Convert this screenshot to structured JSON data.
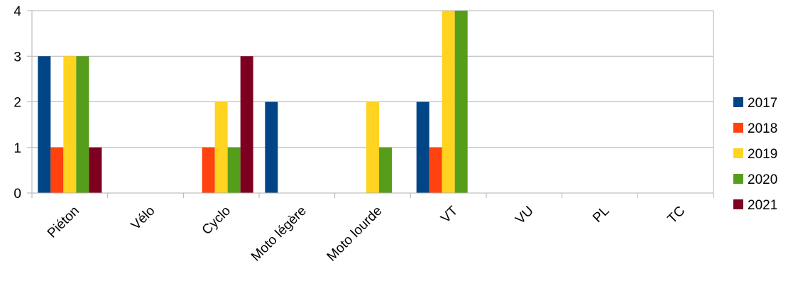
{
  "chart_data": {
    "type": "bar",
    "title": "",
    "xlabel": "",
    "ylabel": "",
    "ylim": [
      0,
      4
    ],
    "yticks": [
      0,
      1,
      2,
      3,
      4
    ],
    "grid": true,
    "legend_position": "right",
    "categories": [
      "Piéton",
      "Vélo",
      "Cyclo",
      "Moto légère",
      "Moto lourde",
      "VT",
      "VU",
      "PL",
      "TC"
    ],
    "series": [
      {
        "name": "2017",
        "color": "#004586",
        "values": [
          3,
          0,
          0,
          2,
          0,
          2,
          0,
          0,
          0
        ]
      },
      {
        "name": "2018",
        "color": "#ff420e",
        "values": [
          1,
          0,
          1,
          0,
          0,
          1,
          0,
          0,
          0
        ]
      },
      {
        "name": "2019",
        "color": "#ffd320",
        "values": [
          3,
          0,
          2,
          0,
          2,
          4,
          0,
          0,
          0
        ]
      },
      {
        "name": "2020",
        "color": "#579d1c",
        "values": [
          3,
          0,
          1,
          0,
          1,
          4,
          0,
          0,
          0
        ]
      },
      {
        "name": "2021",
        "color": "#7e0021",
        "values": [
          1,
          0,
          3,
          0,
          0,
          0,
          0,
          0,
          0
        ]
      }
    ]
  }
}
